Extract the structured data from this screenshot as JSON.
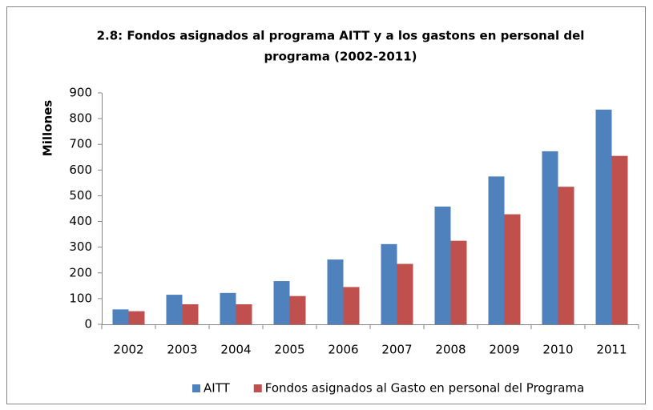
{
  "chart_data": {
    "type": "bar",
    "title": [
      "2.8: Fondos asignados al programa AITT y a los gastons en personal del",
      "programa (2002-2011)"
    ],
    "y_label": "Millones",
    "categories": [
      "2002",
      "2003",
      "2004",
      "2005",
      "2006",
      "2007",
      "2008",
      "2009",
      "2010",
      "2011"
    ],
    "series": [
      {
        "name": "AITT",
        "color": "#4f81bd",
        "values": [
          58,
          115,
          122,
          168,
          252,
          312,
          458,
          575,
          673,
          835
        ]
      },
      {
        "name": "Fondos asignados al Gasto en personal del Programa",
        "color": "#c0504d",
        "values": [
          51,
          78,
          78,
          110,
          145,
          235,
          325,
          428,
          535,
          655
        ]
      }
    ],
    "ylim": [
      0,
      900
    ],
    "yticks": [
      0,
      100,
      200,
      300,
      400,
      500,
      600,
      700,
      800,
      900
    ],
    "grid": false,
    "legend": "bottom"
  }
}
